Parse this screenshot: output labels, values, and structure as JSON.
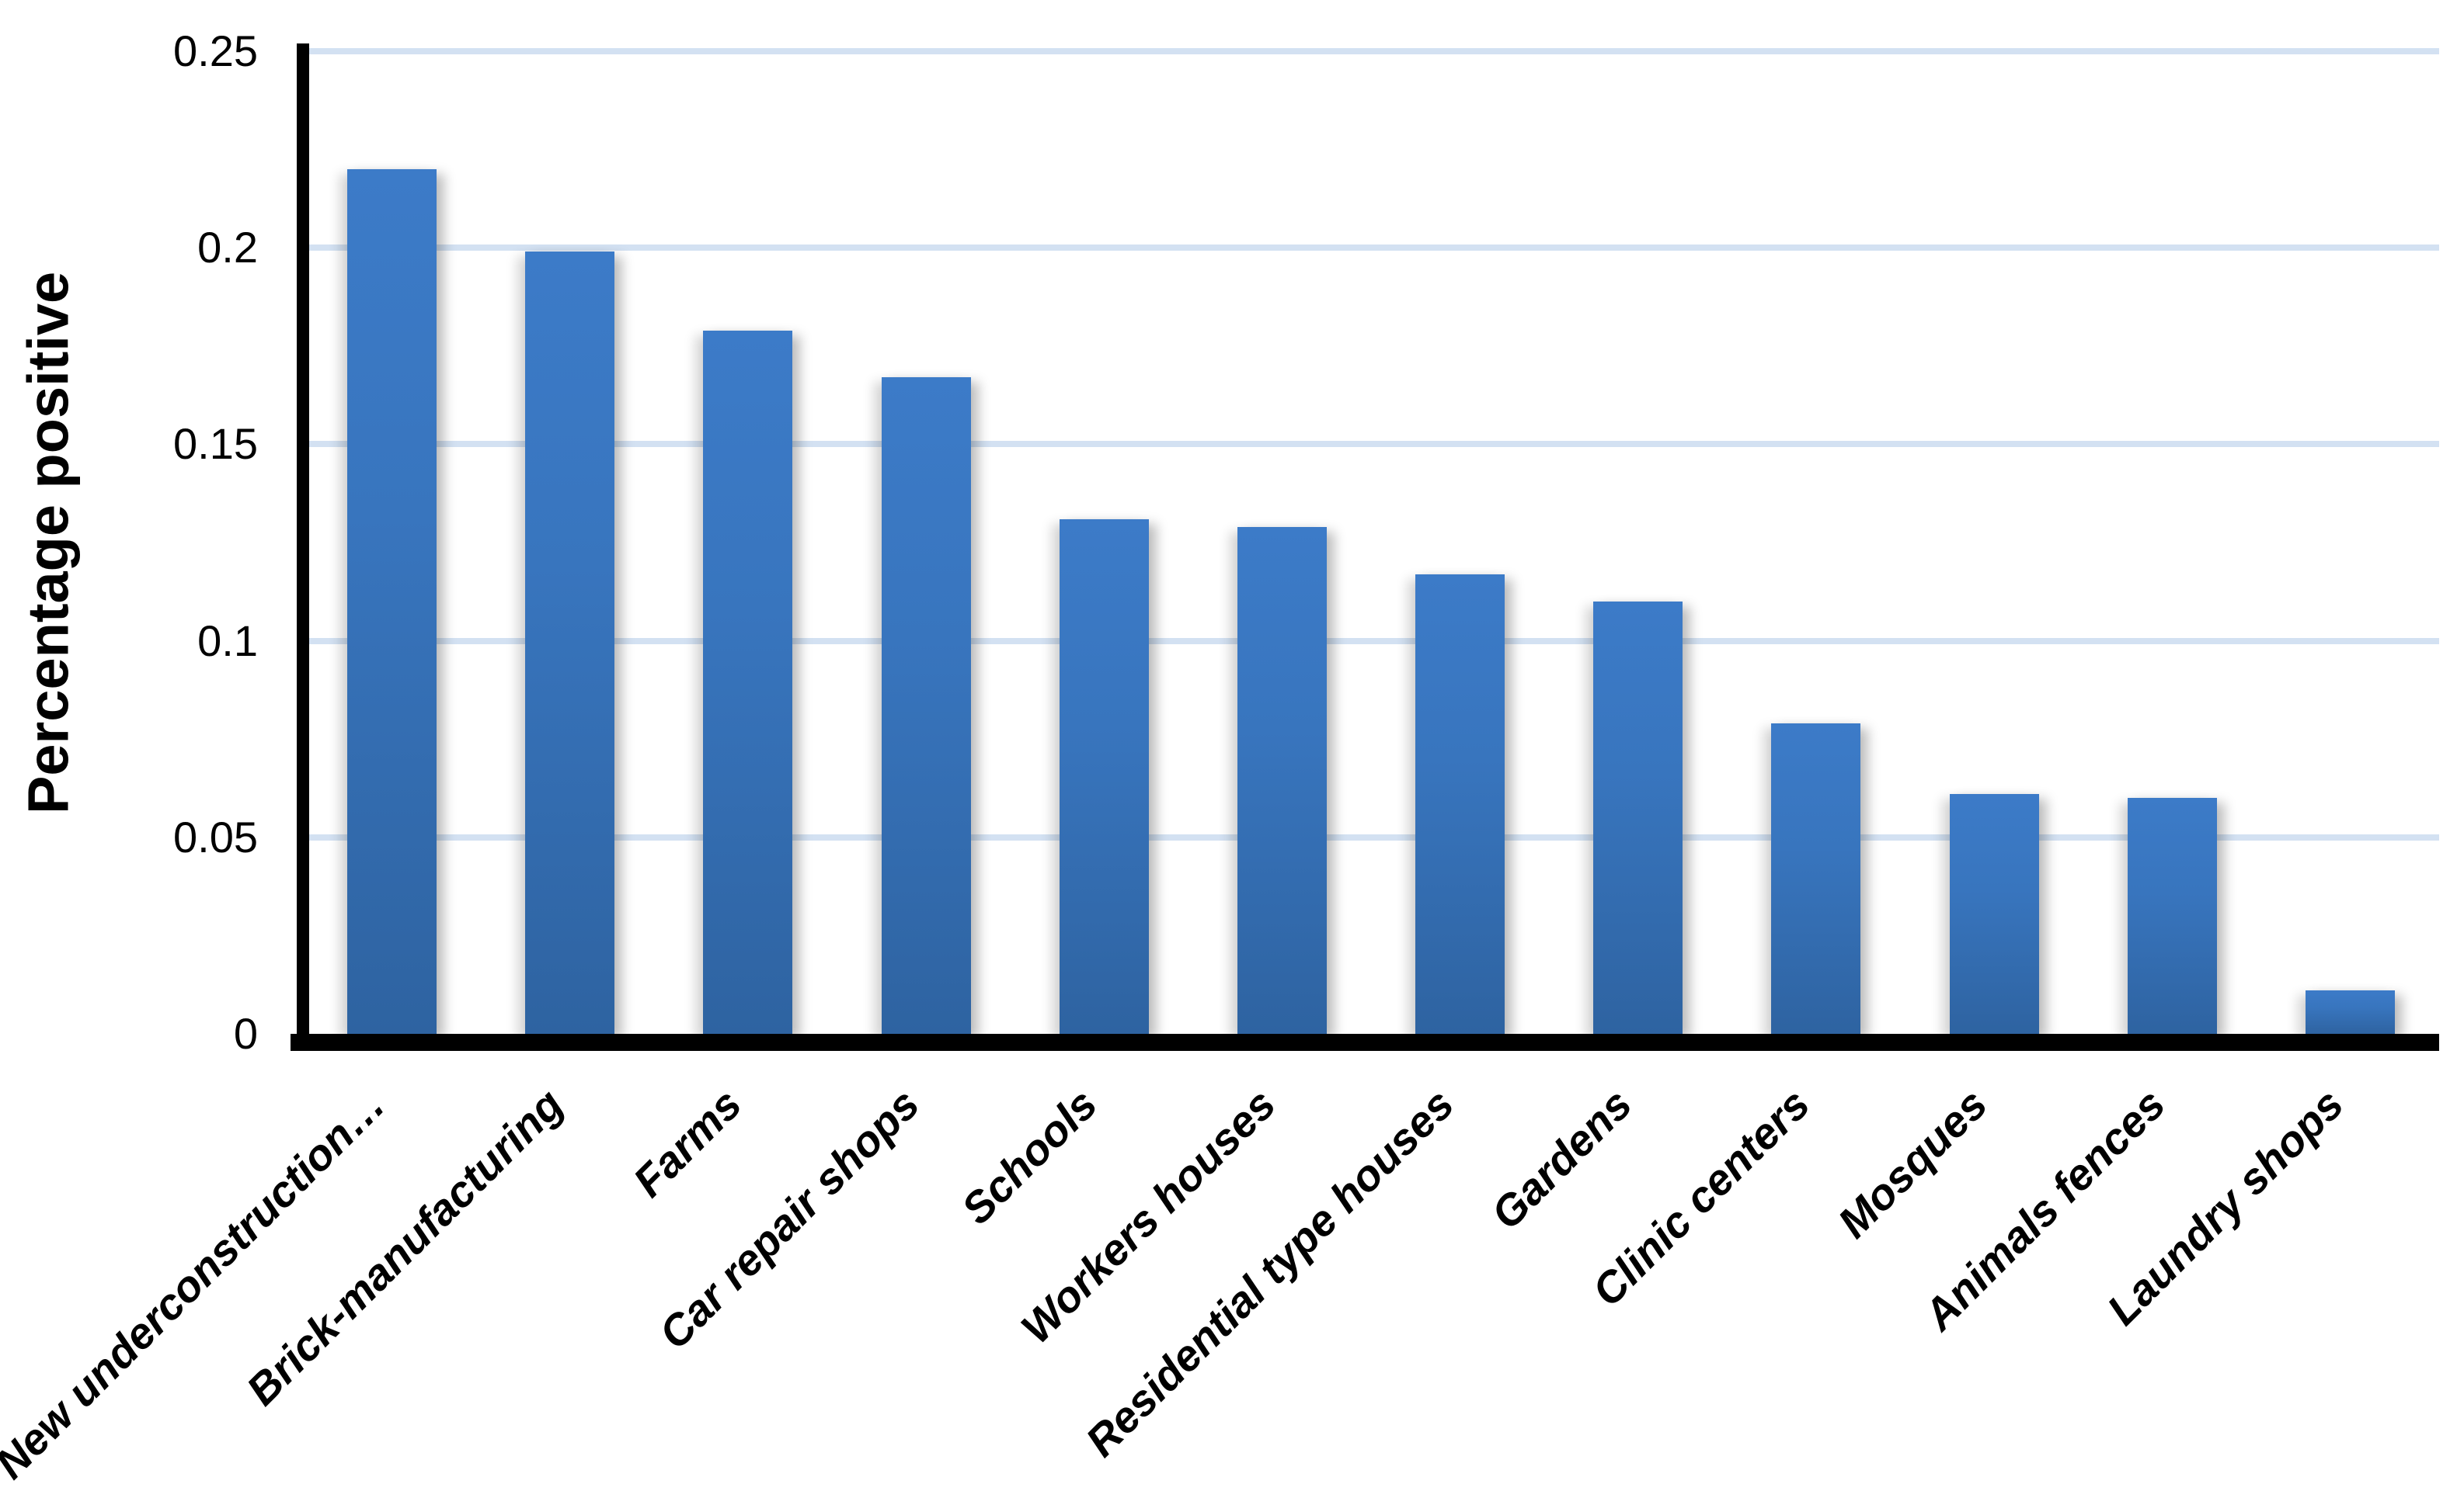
{
  "chart_data": {
    "type": "bar",
    "title": "",
    "xlabel": "",
    "ylabel": "Percentage positive",
    "categories": [
      "New underconstruction…",
      "Brick-manufacturing",
      "Farms",
      "Car repair shops",
      "Schools",
      "Workers houses",
      "Residential type houses",
      "Gardens",
      "Clinic centers",
      "Mosques",
      "Animals fences",
      "Laundry shops"
    ],
    "values": [
      0.22,
      0.199,
      0.179,
      0.167,
      0.131,
      0.129,
      0.117,
      0.11,
      0.079,
      0.061,
      0.06,
      0.011
    ],
    "ylim": [
      0,
      0.25
    ],
    "ytick_values": [
      0,
      0.05,
      0.1,
      0.15,
      0.2,
      0.25
    ],
    "ytick_labels": [
      "0",
      "0.05",
      "0.1",
      "0.15",
      "0.2",
      "0.25"
    ],
    "grid": true,
    "legend_position": "none",
    "colors": {
      "bar_gradient_top": "#3C7BC8",
      "bar_gradient_bottom": "#2E63A1",
      "gridline": "#D3E1F2",
      "axis": "#000000",
      "background": "#FFFFFF"
    }
  }
}
